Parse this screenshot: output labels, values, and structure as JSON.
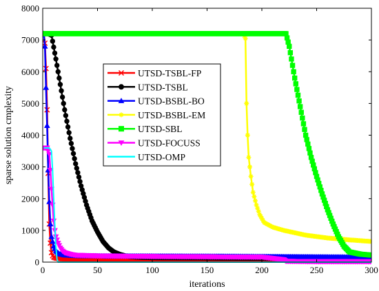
{
  "chart_data": {
    "type": "line",
    "title": "",
    "xlabel": "iterations",
    "ylabel": "sparse solution cmplexity",
    "xlim": [
      0,
      300
    ],
    "ylim": [
      0,
      8000
    ],
    "xticks": [
      0,
      50,
      100,
      150,
      200,
      250,
      300
    ],
    "yticks": [
      0,
      1000,
      2000,
      3000,
      4000,
      5000,
      6000,
      7000,
      8000
    ],
    "grid": false,
    "legend_position": "upper-left inside plot",
    "series": [
      {
        "name": "UTSD-TSBL-FP",
        "color": "#ff0000",
        "marker": "x",
        "points": [
          [
            1,
            7200
          ],
          [
            2,
            6900
          ],
          [
            3,
            6100
          ],
          [
            4,
            4800
          ],
          [
            5,
            2800
          ],
          [
            6,
            1200
          ],
          [
            7,
            600
          ],
          [
            8,
            300
          ],
          [
            9,
            200
          ],
          [
            10,
            160
          ],
          [
            12,
            130
          ],
          [
            15,
            110
          ],
          [
            20,
            100
          ],
          [
            40,
            90
          ],
          [
            100,
            90
          ],
          [
            150,
            90
          ],
          [
            200,
            80
          ],
          [
            300,
            80
          ]
        ]
      },
      {
        "name": "UTSD-TSBL",
        "color": "#000000",
        "marker": "circle",
        "points": [
          [
            1,
            7200
          ],
          [
            3,
            7200
          ],
          [
            5,
            7200
          ],
          [
            8,
            7150
          ],
          [
            12,
            6400
          ],
          [
            16,
            5600
          ],
          [
            20,
            4800
          ],
          [
            25,
            3900
          ],
          [
            30,
            3100
          ],
          [
            35,
            2400
          ],
          [
            40,
            1800
          ],
          [
            45,
            1300
          ],
          [
            50,
            950
          ],
          [
            55,
            650
          ],
          [
            60,
            450
          ],
          [
            65,
            320
          ],
          [
            70,
            250
          ],
          [
            75,
            200
          ],
          [
            80,
            170
          ],
          [
            90,
            150
          ],
          [
            100,
            140
          ],
          [
            150,
            130
          ],
          [
            200,
            120
          ],
          [
            250,
            110
          ],
          [
            300,
            110
          ]
        ]
      },
      {
        "name": "UTSD-BSBL-BO",
        "color": "#0000ff",
        "marker": "triangle",
        "points": [
          [
            1,
            7200
          ],
          [
            2,
            6800
          ],
          [
            3,
            5500
          ],
          [
            4,
            4300
          ],
          [
            5,
            2900
          ],
          [
            6,
            1900
          ],
          [
            7,
            1200
          ],
          [
            8,
            800
          ],
          [
            10,
            500
          ],
          [
            12,
            350
          ],
          [
            15,
            260
          ],
          [
            20,
            220
          ],
          [
            30,
            200
          ],
          [
            50,
            190
          ],
          [
            100,
            185
          ],
          [
            150,
            180
          ],
          [
            200,
            170
          ],
          [
            250,
            160
          ],
          [
            300,
            150
          ]
        ]
      },
      {
        "name": "UTSD-BSBL-EM",
        "color": "#ffff00",
        "marker": "star",
        "points": [
          [
            1,
            7200
          ],
          [
            50,
            7200
          ],
          [
            100,
            7200
          ],
          [
            150,
            7200
          ],
          [
            183,
            7200
          ],
          [
            185,
            7050
          ],
          [
            186,
            5000
          ],
          [
            187,
            4000
          ],
          [
            188,
            3300
          ],
          [
            190,
            2700
          ],
          [
            192,
            2200
          ],
          [
            195,
            1800
          ],
          [
            198,
            1500
          ],
          [
            202,
            1250
          ],
          [
            210,
            1100
          ],
          [
            220,
            1000
          ],
          [
            240,
            850
          ],
          [
            260,
            760
          ],
          [
            280,
            700
          ],
          [
            300,
            650
          ]
        ]
      },
      {
        "name": "UTSD-SBL",
        "color": "#00ff00",
        "marker": "square",
        "points": [
          [
            1,
            7200
          ],
          [
            50,
            7200
          ],
          [
            100,
            7200
          ],
          [
            150,
            7200
          ],
          [
            200,
            7200
          ],
          [
            222,
            7200
          ],
          [
            225,
            6800
          ],
          [
            230,
            5800
          ],
          [
            235,
            4900
          ],
          [
            240,
            4000
          ],
          [
            245,
            3300
          ],
          [
            250,
            2700
          ],
          [
            255,
            2150
          ],
          [
            260,
            1650
          ],
          [
            265,
            1200
          ],
          [
            270,
            800
          ],
          [
            275,
            500
          ],
          [
            280,
            320
          ],
          [
            290,
            250
          ],
          [
            300,
            220
          ]
        ]
      },
      {
        "name": "UTSD-FOCUSS",
        "color": "#ff00ff",
        "marker": "triangle-down",
        "points": [
          [
            1,
            3600
          ],
          [
            4,
            3600
          ],
          [
            6,
            3400
          ],
          [
            7,
            2900
          ],
          [
            8,
            2300
          ],
          [
            9,
            1800
          ],
          [
            10,
            1300
          ],
          [
            11,
            1000
          ],
          [
            12,
            800
          ],
          [
            14,
            600
          ],
          [
            16,
            450
          ],
          [
            18,
            350
          ],
          [
            20,
            300
          ],
          [
            25,
            250
          ],
          [
            30,
            220
          ],
          [
            50,
            200
          ],
          [
            100,
            180
          ],
          [
            150,
            170
          ],
          [
            200,
            160
          ],
          [
            220,
            80
          ],
          [
            222,
            30
          ],
          [
            250,
            20
          ],
          [
            300,
            20
          ]
        ]
      },
      {
        "name": "UTSD-OMP",
        "color": "#00ffff",
        "marker": "none",
        "points": [
          [
            1,
            3600
          ],
          [
            6,
            3600
          ],
          [
            8,
            3500
          ],
          [
            9,
            2900
          ],
          [
            10,
            2000
          ],
          [
            11,
            1200
          ],
          [
            12,
            500
          ],
          [
            13,
            100
          ],
          [
            14,
            0
          ],
          [
            300,
            0
          ]
        ]
      }
    ]
  }
}
